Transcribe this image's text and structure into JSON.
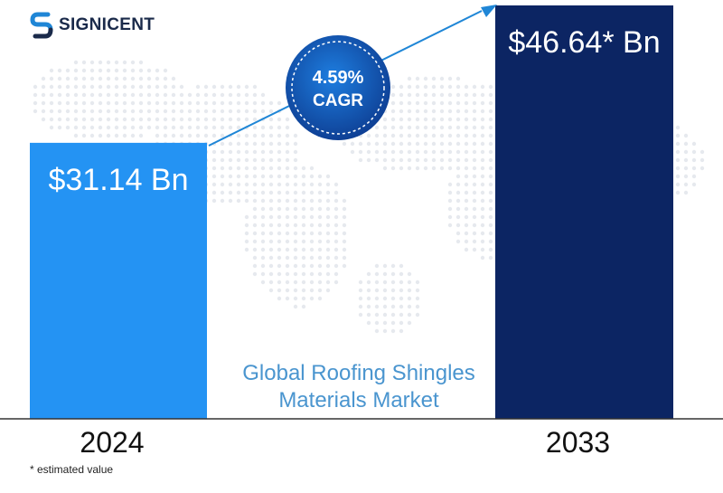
{
  "brand": {
    "name": "SIGNICENT",
    "logo_icon": "signicent-s-logo"
  },
  "colors": {
    "bar_2024": "#2493f3",
    "bar_2033": "#0c2563",
    "arrow": "#1f86d6",
    "badge_fill": "#1565c8",
    "badge_dark": "#0d2f7a",
    "market_text": "#4a95cf",
    "baseline": "#333333",
    "map_dots": "#e6e9ee"
  },
  "chart_data": {
    "type": "bar",
    "title": "Global Roofing Shingles Materials Market",
    "title_lines": [
      "Global Roofing Shingles",
      "Materials Market"
    ],
    "categories": [
      "2024",
      "2033"
    ],
    "values": [
      31.14,
      46.64
    ],
    "unit": "Bn USD",
    "data_labels": [
      "$31.14 Bn",
      "$46.64* Bn"
    ],
    "ylim": [
      0,
      46.64
    ],
    "grid": false,
    "legend": "none",
    "annotation": {
      "cagr_value": "4.59%",
      "cagr_label": "CAGR"
    }
  },
  "footnote": "* estimated value"
}
